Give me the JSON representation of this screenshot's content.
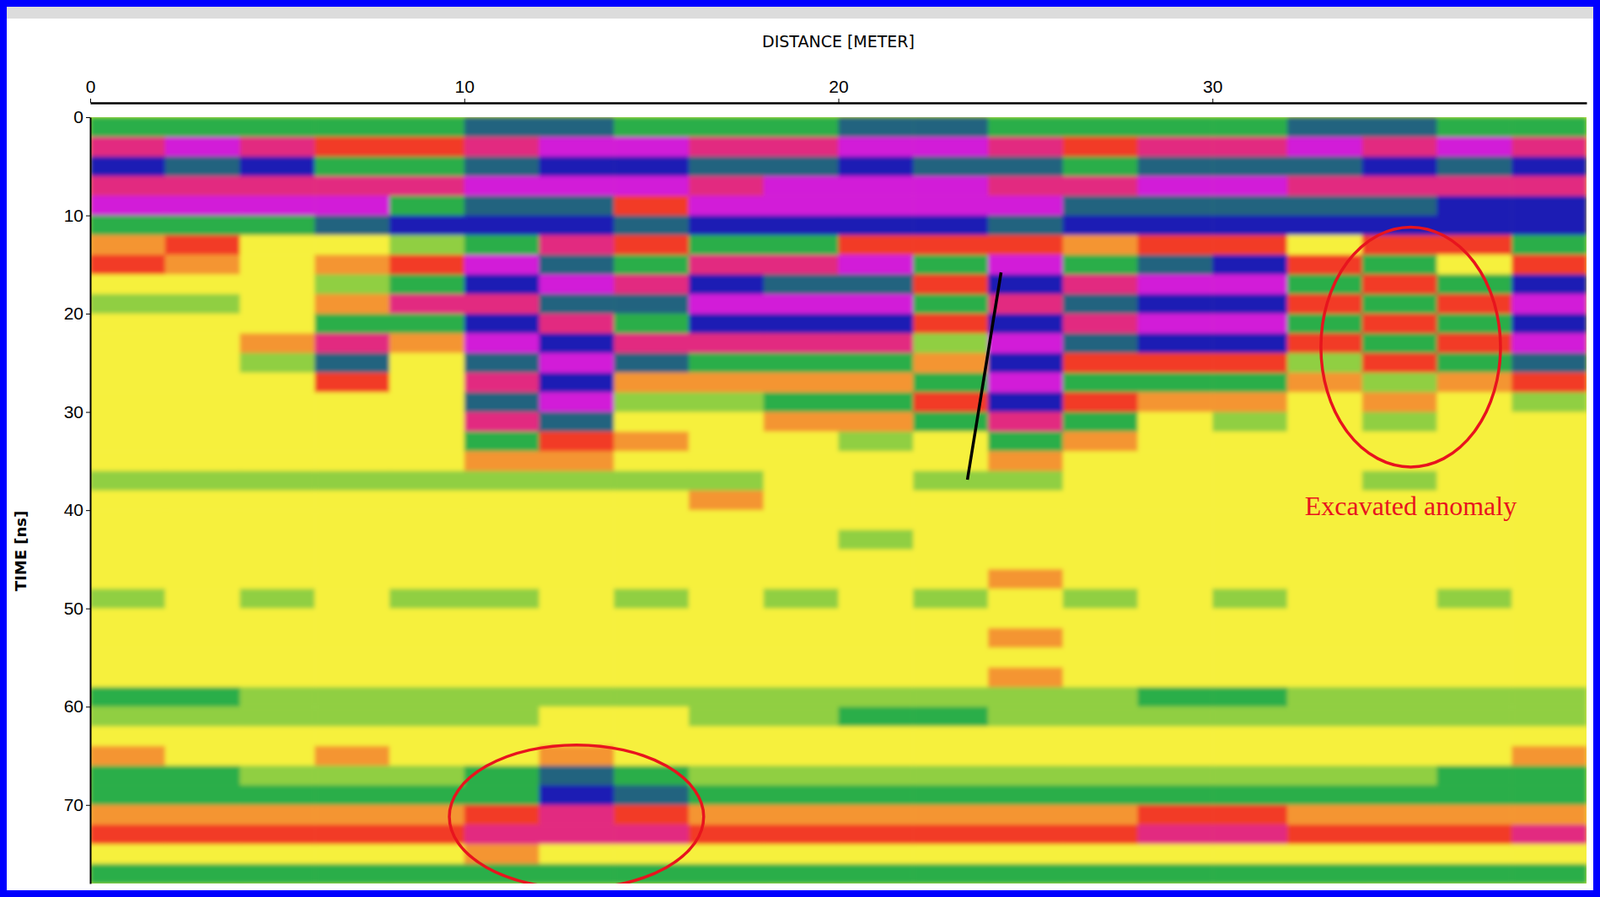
{
  "chart_data": {
    "type": "heatmap",
    "x_label": "DISTANCE [METER]",
    "y_label": "TIME [ns]",
    "xlim": [
      0,
      40
    ],
    "ylim": [
      0,
      78
    ],
    "xticks": [
      0,
      10,
      20,
      30
    ],
    "yticks": [
      0,
      10,
      20,
      30,
      40,
      50,
      60,
      70
    ],
    "zlim": [
      -2,
      2
    ],
    "x_bins": [
      0,
      2,
      4,
      6,
      8,
      10,
      12,
      14,
      16,
      18,
      20,
      22,
      24,
      26,
      28,
      30,
      32,
      34,
      36,
      38,
      40
    ],
    "y_bins": [
      0,
      2,
      4,
      6,
      8,
      10,
      12,
      14,
      16,
      18,
      20,
      22,
      24,
      26,
      28,
      30,
      32,
      34,
      36,
      38,
      40,
      42,
      44,
      46,
      48,
      50,
      52,
      54,
      56,
      58,
      60,
      62,
      64,
      66,
      68,
      70,
      72,
      74,
      76,
      78
    ],
    "cells": [
      [
        -1,
        -1,
        -1,
        -1,
        -1,
        -1.5,
        -1.5,
        -1,
        -1,
        -1,
        -1.5,
        -1.5,
        -1,
        -1,
        -1,
        -1,
        -1.5,
        -1.5,
        -1,
        -1
      ],
      [
        1.5,
        2,
        1.5,
        1,
        1,
        1.5,
        2,
        2,
        1.5,
        1.5,
        2,
        2,
        1.5,
        1,
        1.5,
        1.5,
        2,
        1.5,
        2,
        1.5
      ],
      [
        -2,
        -1.5,
        -2,
        -1,
        -1,
        -1.5,
        -2,
        -2,
        -1.5,
        -1.5,
        -2,
        -1.5,
        -1.5,
        -1,
        -1.5,
        -1.5,
        -1.5,
        -2,
        -1.5,
        -2
      ],
      [
        1.5,
        1.5,
        1.5,
        1.5,
        1.5,
        2,
        2,
        2,
        1.5,
        2,
        2,
        2,
        1.5,
        1.5,
        2,
        2,
        1.5,
        1.5,
        1.5,
        1.5
      ],
      [
        2,
        2,
        2,
        2,
        -1,
        -1.5,
        -1.5,
        1,
        2,
        2,
        2,
        2,
        2,
        -1.5,
        -1.5,
        -1.5,
        -1.5,
        -1.5,
        -2,
        -2
      ],
      [
        -1,
        -1,
        -1,
        -1.5,
        -2,
        -2,
        -2,
        -1.5,
        -2,
        -2,
        -2,
        -2,
        -1.5,
        -2,
        -2,
        -2,
        -2,
        -2,
        -2,
        -2
      ],
      [
        0.5,
        1,
        0,
        0,
        -0.5,
        -1,
        1.5,
        1,
        -1,
        -1,
        1,
        1,
        1,
        0.5,
        1,
        1,
        0,
        1,
        1,
        -1
      ],
      [
        1,
        0.5,
        0,
        0.5,
        1,
        2,
        -1.5,
        -1,
        1.5,
        1.5,
        2,
        -1,
        2,
        -1,
        -1.5,
        -2,
        1,
        -1,
        0,
        1
      ],
      [
        0,
        0,
        0,
        -0.5,
        -1,
        -2,
        2,
        1.5,
        -2,
        -1.5,
        -1.5,
        1,
        -2,
        1.5,
        2,
        2,
        -1,
        1,
        -1,
        -2
      ],
      [
        -0.5,
        -0.5,
        0,
        0.5,
        1.5,
        1.5,
        -1.5,
        -1.5,
        2,
        2,
        2,
        -1,
        1.5,
        -1.5,
        -2,
        -2,
        1,
        -1,
        1,
        2
      ],
      [
        0,
        0,
        0,
        -1,
        -1,
        -2,
        1.5,
        -1,
        -2,
        -2,
        -2,
        1,
        -2,
        1.5,
        2,
        2,
        -1,
        1,
        -1,
        -2
      ],
      [
        0,
        0,
        0.5,
        1.5,
        0.5,
        2,
        -2,
        1.5,
        1.5,
        1.5,
        1.5,
        -0.5,
        2,
        -1.5,
        -2,
        -2,
        1,
        -1,
        1,
        2
      ],
      [
        0,
        0,
        -0.5,
        -1.5,
        0,
        -1.5,
        2,
        -1.5,
        -1,
        -1,
        -1,
        0.5,
        -2,
        1,
        1,
        1,
        -0.5,
        1,
        -1,
        -1.5
      ],
      [
        0,
        0,
        0,
        1,
        0,
        1.5,
        -2,
        0.5,
        0.5,
        0.5,
        0.5,
        -1,
        2,
        -1,
        -1,
        -1,
        0.5,
        -0.5,
        0.5,
        1
      ],
      [
        0,
        0,
        0,
        0,
        0,
        -1.5,
        2,
        -0.5,
        -0.5,
        -1,
        -1,
        1,
        -2,
        1,
        0.5,
        0.5,
        0,
        0.5,
        0,
        -0.5
      ],
      [
        0,
        0,
        0,
        0,
        0,
        1.5,
        -1.5,
        0,
        0,
        0.5,
        0.5,
        -1,
        1.5,
        -1,
        0,
        -0.5,
        0,
        -0.5,
        0,
        0
      ],
      [
        0,
        0,
        0,
        0,
        0,
        -1,
        1,
        0.5,
        0,
        0,
        -0.5,
        0,
        -1,
        0.5,
        0,
        0,
        0,
        0,
        0,
        0
      ],
      [
        0,
        0,
        0,
        0,
        0,
        0.5,
        0.5,
        0,
        0,
        0,
        0,
        0,
        0.5,
        0,
        0,
        0,
        0,
        0,
        0,
        0
      ],
      [
        -0.5,
        -0.5,
        -0.5,
        -0.5,
        -0.5,
        -0.5,
        -0.5,
        -0.5,
        -0.5,
        0,
        0,
        -0.5,
        -0.5,
        0,
        0,
        0,
        0,
        -0.5,
        0,
        0
      ],
      [
        0,
        0,
        0,
        0,
        0,
        0,
        0,
        0,
        0.5,
        0,
        0,
        0,
        0,
        0,
        0,
        0,
        0,
        0,
        0,
        0
      ],
      [
        0,
        0,
        0,
        0,
        0,
        0,
        0,
        0,
        0,
        0,
        0,
        0,
        0,
        0,
        0,
        0,
        0,
        0,
        0,
        0
      ],
      [
        0,
        0,
        0,
        0,
        0,
        0,
        0,
        0,
        0,
        0,
        -0.5,
        0,
        0,
        0,
        0,
        0,
        0,
        0,
        0,
        0
      ],
      [
        0,
        0,
        0,
        0,
        0,
        0,
        0,
        0,
        0,
        0,
        0,
        0,
        0,
        0,
        0,
        0,
        0,
        0,
        0,
        0
      ],
      [
        0,
        0,
        0,
        0,
        0,
        0,
        0,
        0,
        0,
        0,
        0,
        0,
        0.5,
        0,
        0,
        0,
        0,
        0,
        0,
        0
      ],
      [
        -0.5,
        0,
        -0.5,
        0,
        -0.5,
        -0.5,
        0,
        -0.5,
        0,
        -0.5,
        0,
        -0.5,
        0,
        -0.5,
        0,
        -0.5,
        0,
        0,
        -0.5,
        0
      ],
      [
        0,
        0,
        0,
        0,
        0,
        0,
        0,
        0,
        0,
        0,
        0,
        0,
        0,
        0,
        0,
        0,
        0,
        0,
        0,
        0
      ],
      [
        0,
        0,
        0,
        0,
        0,
        0,
        0,
        0,
        0,
        0,
        0,
        0,
        0.5,
        0,
        0,
        0,
        0,
        0,
        0,
        0
      ],
      [
        0,
        0,
        0,
        0,
        0,
        0,
        0,
        0,
        0,
        0,
        0,
        0,
        0,
        0,
        0,
        0,
        0,
        0,
        0,
        0
      ],
      [
        0,
        0,
        0,
        0,
        0,
        0,
        0,
        0,
        0,
        0,
        0,
        0,
        0.5,
        0,
        0,
        0,
        0,
        0,
        0,
        0
      ],
      [
        -1,
        -1,
        -0.5,
        -0.5,
        -0.5,
        -0.5,
        -0.5,
        -0.5,
        -0.5,
        -0.5,
        -0.5,
        -0.5,
        -0.5,
        -0.5,
        -1,
        -1,
        -0.5,
        -0.5,
        -0.5,
        -0.5
      ],
      [
        -0.5,
        -0.5,
        -0.5,
        -0.5,
        -0.5,
        -0.5,
        0,
        0,
        -0.5,
        -0.5,
        -1,
        -1,
        -0.5,
        -0.5,
        -0.5,
        -0.5,
        -0.5,
        -0.5,
        -0.5,
        -0.5
      ],
      [
        0,
        0,
        0,
        0,
        0,
        0,
        0,
        0,
        0,
        0,
        0,
        0,
        0,
        0,
        0,
        0,
        0,
        0,
        0,
        0
      ],
      [
        0.5,
        0,
        0,
        0.5,
        0,
        0,
        0.5,
        0,
        0,
        0,
        0,
        0,
        0,
        0,
        0,
        0,
        0,
        0,
        0,
        0.5
      ],
      [
        -1,
        -1,
        -0.5,
        -0.5,
        -0.5,
        -1,
        -1.5,
        -1,
        -0.5,
        -0.5,
        -0.5,
        -0.5,
        -0.5,
        -0.5,
        -0.5,
        -0.5,
        -0.5,
        -0.5,
        -1,
        -1
      ],
      [
        -1,
        -1,
        -1,
        -1,
        -1,
        -1,
        -2,
        -1.5,
        -1,
        -1,
        -1,
        -1,
        -1,
        -1,
        -1,
        -1,
        -1,
        -1,
        -1,
        -1
      ],
      [
        0.5,
        0.5,
        0.5,
        0.5,
        0.5,
        1,
        1.5,
        1,
        0.5,
        0.5,
        0.5,
        0.5,
        0.5,
        0.5,
        1,
        1,
        0.5,
        0.5,
        0.5,
        0.5
      ],
      [
        1,
        1,
        1,
        1,
        1,
        1.5,
        1.5,
        1.5,
        1,
        1,
        1,
        1,
        1,
        1,
        1.5,
        1.5,
        1,
        1,
        1,
        1.5
      ],
      [
        0,
        0,
        0,
        0,
        0,
        0.5,
        0,
        0,
        0,
        0,
        0,
        0,
        0,
        0,
        0,
        0,
        0,
        0,
        0,
        0
      ],
      [
        -1,
        -1,
        -1,
        -1,
        -1,
        -1,
        -1,
        -1,
        -1,
        -1,
        -1,
        -1,
        -1,
        -1,
        -1,
        -1,
        -1,
        -1,
        -1,
        -1
      ]
    ],
    "annotations": [
      {
        "type": "ellipse",
        "x": 35.3,
        "y": 23.4,
        "rx": 2.4,
        "ry": 12.2,
        "color": "#e8141e"
      },
      {
        "type": "ellipse",
        "x": 13.0,
        "y": 71.2,
        "rx": 3.4,
        "ry": 7.3,
        "color": "#e8141e"
      },
      {
        "type": "line",
        "x": [
          24.35,
          23.45
        ],
        "y": [
          15.8,
          36.9
        ],
        "color": "#000000"
      },
      {
        "type": "text",
        "text": "Excavated anomaly",
        "x": 35.3,
        "y": 39.9,
        "color": "#e8141e"
      }
    ]
  }
}
